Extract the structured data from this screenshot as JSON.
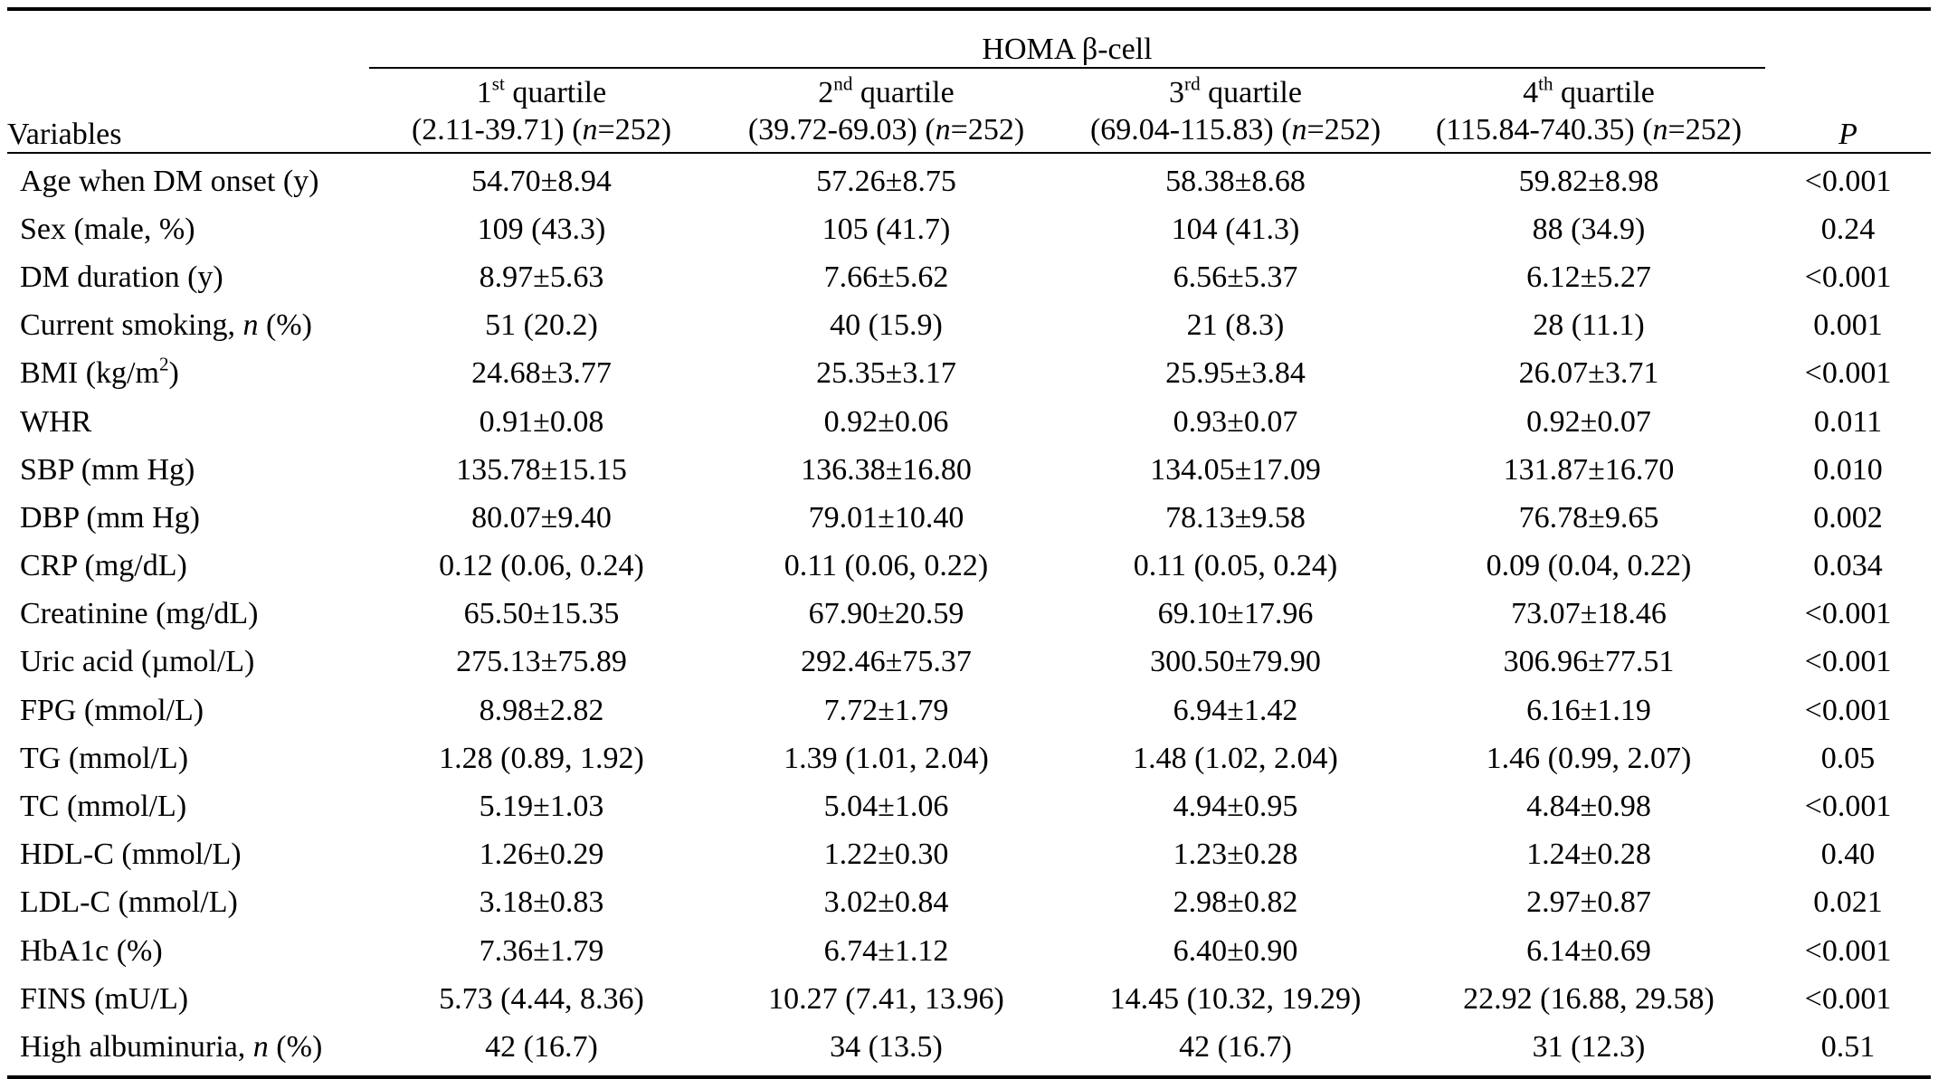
{
  "table": {
    "variables_header": "Variables",
    "group_header": "HOMA β-cell",
    "p_header": "P",
    "quartiles": [
      {
        "ordinal_num": "1",
        "ordinal_sup": "st",
        "word": "quartile",
        "range": "(2.11-39.71)",
        "n_label": "n",
        "n_value": "=252)"
      },
      {
        "ordinal_num": "2",
        "ordinal_sup": "nd",
        "word": "quartile",
        "range": "(39.72-69.03)",
        "n_label": "n",
        "n_value": "=252)"
      },
      {
        "ordinal_num": "3",
        "ordinal_sup": "rd",
        "word": "quartile",
        "range": "(69.04-115.83)",
        "n_label": "n",
        "n_value": "=252)"
      },
      {
        "ordinal_num": "4",
        "ordinal_sup": "th",
        "word": "quartile",
        "range": "(115.84-740.35)",
        "n_label": "n",
        "n_value": "=252)"
      }
    ],
    "rows": [
      {
        "label": "Age when DM onset (y)",
        "q1": "54.70±8.94",
        "q2": "57.26±8.75",
        "q3": "58.38±8.68",
        "q4": "59.82±8.98",
        "p": "<0.001"
      },
      {
        "label": "Sex (male, %)",
        "q1": "109 (43.3)",
        "q2": "105 (41.7)",
        "q3": "104 (41.3)",
        "q4": "88 (34.9)",
        "p": "0.24"
      },
      {
        "label": "DM duration (y)",
        "q1": "8.97±5.63",
        "q2": "7.66±5.62",
        "q3": "6.56±5.37",
        "q4": "6.12±5.27",
        "p": "<0.001"
      },
      {
        "label_pre": "Current smoking, ",
        "label_ital": "n",
        "label_post": " (%)",
        "q1": "51 (20.2)",
        "q2": "40 (15.9)",
        "q3": "21 (8.3)",
        "q4": "28 (11.1)",
        "p": "0.001"
      },
      {
        "label_pre": "BMI (kg/m",
        "label_sup": "2",
        "label_post": ")",
        "q1": "24.68±3.77",
        "q2": "25.35±3.17",
        "q3": "25.95±3.84",
        "q4": "26.07±3.71",
        "p": "<0.001"
      },
      {
        "label": "WHR",
        "q1": "0.91±0.08",
        "q2": "0.92±0.06",
        "q3": "0.93±0.07",
        "q4": "0.92±0.07",
        "p": "0.011"
      },
      {
        "label": "SBP (mm Hg)",
        "q1": "135.78±15.15",
        "q2": "136.38±16.80",
        "q3": "134.05±17.09",
        "q4": "131.87±16.70",
        "p": "0.010"
      },
      {
        "label": "DBP (mm Hg)",
        "q1": "80.07±9.40",
        "q2": "79.01±10.40",
        "q3": "78.13±9.58",
        "q4": "76.78±9.65",
        "p": "0.002"
      },
      {
        "label": "CRP (mg/dL)",
        "q1": "0.12 (0.06, 0.24)",
        "q2": "0.11 (0.06, 0.22)",
        "q3": "0.11 (0.05, 0.24)",
        "q4": "0.09 (0.04, 0.22)",
        "p": "0.034"
      },
      {
        "label": "Creatinine (mg/dL)",
        "q1": "65.50±15.35",
        "q2": "67.90±20.59",
        "q3": "69.10±17.96",
        "q4": "73.07±18.46",
        "p": "<0.001"
      },
      {
        "label": "Uric acid (µmol/L)",
        "q1": "275.13±75.89",
        "q2": "292.46±75.37",
        "q3": "300.50±79.90",
        "q4": "306.96±77.51",
        "p": "<0.001"
      },
      {
        "label": "FPG (mmol/L)",
        "q1": "8.98±2.82",
        "q2": "7.72±1.79",
        "q3": "6.94±1.42",
        "q4": "6.16±1.19",
        "p": "<0.001"
      },
      {
        "label": "TG (mmol/L)",
        "q1": "1.28 (0.89, 1.92)",
        "q2": "1.39 (1.01, 2.04)",
        "q3": "1.48 (1.02, 2.04)",
        "q4": "1.46 (0.99, 2.07)",
        "p": "0.05"
      },
      {
        "label": "TC (mmol/L)",
        "q1": "5.19±1.03",
        "q2": "5.04±1.06",
        "q3": "4.94±0.95",
        "q4": "4.84±0.98",
        "p": "<0.001"
      },
      {
        "label": "HDL-C (mmol/L)",
        "q1": "1.26±0.29",
        "q2": "1.22±0.30",
        "q3": "1.23±0.28",
        "q4": "1.24±0.28",
        "p": "0.40"
      },
      {
        "label": "LDL-C (mmol/L)",
        "q1": "3.18±0.83",
        "q2": "3.02±0.84",
        "q3": "2.98±0.82",
        "q4": "2.97±0.87",
        "p": "0.021"
      },
      {
        "label": "HbA1c (%)",
        "q1": "7.36±1.79",
        "q2": "6.74±1.12",
        "q3": "6.40±0.90",
        "q4": "6.14±0.69",
        "p": "<0.001"
      },
      {
        "label": "FINS (mU/L)",
        "q1": "5.73 (4.44, 8.36)",
        "q2": "10.27 (7.41, 13.96)",
        "q3": "14.45 (10.32, 19.29)",
        "q4": "22.92 (16.88, 29.58)",
        "p": "<0.001"
      },
      {
        "label_pre": "High albuminuria, ",
        "label_ital": "n",
        "label_post": " (%)",
        "q1": "42 (16.7)",
        "q2": "34 (13.5)",
        "q3": "42 (16.7)",
        "q4": "31 (12.3)",
        "p": "0.51"
      }
    ]
  }
}
